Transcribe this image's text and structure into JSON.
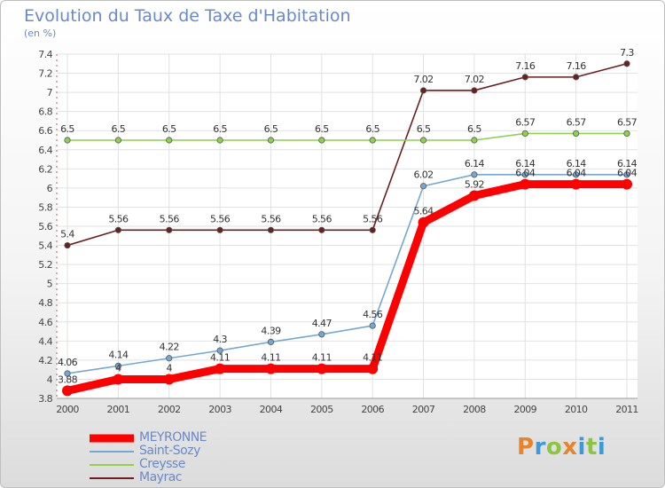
{
  "title": "Evolution du Taux de Taxe d'Habitation",
  "subtitle": "(en %)",
  "brand": {
    "letters": [
      "P",
      "r",
      "o",
      "x",
      "i",
      "t",
      "i"
    ],
    "colors": [
      "#e8832a",
      "#3b9ad9",
      "#8cc63f",
      "#e8832a",
      "#3b9ad9",
      "#8cc63f",
      "#3b9ad9"
    ]
  },
  "chart_data": {
    "type": "line",
    "title": "Evolution du Taux de Taxe d'Habitation",
    "ylabel": "(en %)",
    "xlabel": "",
    "x": [
      "2000",
      "2001",
      "2002",
      "2003",
      "2004",
      "2005",
      "2006",
      "2007",
      "2008",
      "2009",
      "2010",
      "2011"
    ],
    "ylim": [
      3.8,
      7.4
    ],
    "yticks": [
      "3.8",
      "4",
      "4.2",
      "4.4",
      "4.6",
      "4.8",
      "5",
      "5.2",
      "5.4",
      "5.6",
      "5.8",
      "6",
      "6.2",
      "6.4",
      "6.6",
      "6.8",
      "7",
      "7.2",
      "7.4"
    ],
    "grid": true,
    "legend_position": "bottom-left",
    "series": [
      {
        "name": "Mayrac",
        "color": "#6b1f1f",
        "values": [
          5.4,
          5.56,
          5.56,
          5.56,
          5.56,
          5.56,
          5.56,
          7.02,
          7.02,
          7.16,
          7.16,
          7.3
        ],
        "labels": [
          "5.4",
          "5.56",
          "5.56",
          "5.56",
          "5.56",
          "5.56",
          "5.56",
          "7.02",
          "7.02",
          "7.16",
          "7.16",
          "7.3"
        ]
      },
      {
        "name": "Creysse",
        "color": "#8fd14f",
        "values": [
          6.5,
          6.5,
          6.5,
          6.5,
          6.5,
          6.5,
          6.5,
          6.5,
          6.5,
          6.57,
          6.57,
          6.57
        ],
        "labels": [
          "6.5",
          "6.5",
          "6.5",
          "6.5",
          "6.5",
          "6.5",
          "6.5",
          "6.5",
          "6.5",
          "6.57",
          "6.57",
          "6.57"
        ]
      },
      {
        "name": "Saint-Sozy",
        "color": "#74a6d6",
        "values": [
          4.06,
          4.14,
          4.22,
          4.3,
          4.39,
          4.47,
          4.56,
          6.02,
          6.14,
          6.14,
          6.14,
          6.14
        ],
        "labels": [
          "4.06",
          "4.14",
          "4.22",
          "4.3",
          "4.39",
          "4.47",
          "4.56",
          "6.02",
          "6.14",
          "6.14",
          "6.14",
          "6.14"
        ]
      },
      {
        "name": "MEYRONNE",
        "color": "#ff0000",
        "values": [
          3.88,
          4.0,
          4.0,
          4.11,
          4.11,
          4.11,
          4.11,
          5.64,
          5.92,
          6.04,
          6.04,
          6.04
        ],
        "labels": [
          "3.88",
          "4",
          "4",
          "4.11",
          "4.11",
          "4.11",
          "4.11",
          "5.64",
          "5.92",
          "6.04",
          "6.04",
          "6.04"
        ]
      }
    ]
  },
  "legend": [
    {
      "label": "MEYRONNE",
      "color": "#ff0000"
    },
    {
      "label": "Saint-Sozy",
      "color": "#74a6d6"
    },
    {
      "label": "Creysse",
      "color": "#8fd14f"
    },
    {
      "label": "Mayrac",
      "color": "#6b1f1f"
    }
  ]
}
